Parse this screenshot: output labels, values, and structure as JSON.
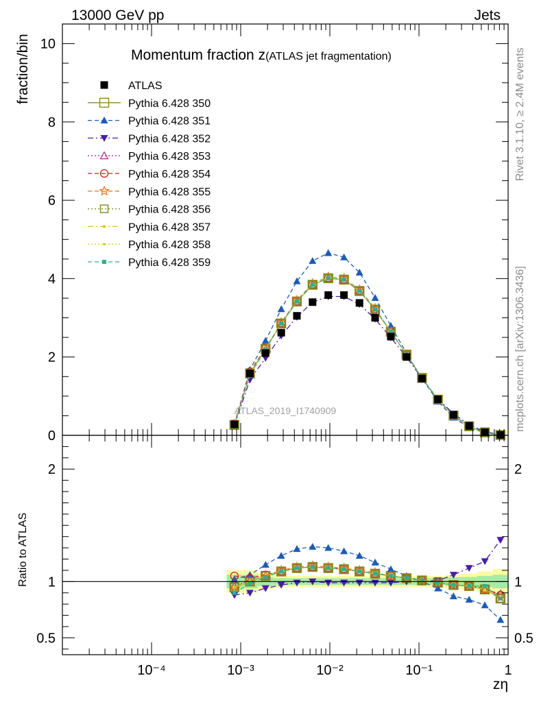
{
  "header": {
    "left": "13000 GeV pp",
    "right": "Jets"
  },
  "side": {
    "rivet": "Rivet 3.1.10, ≥ 2.4M events",
    "mcplots": "mcplots.cern.ch [arXiv:1306.3436]"
  },
  "watermark": "ATLAS_2019_I1740909",
  "chart_data": {
    "type": "scatter",
    "title_main": "Momentum fraction z",
    "title_sub": "(ATLAS jet fragmentation)",
    "ylabel_top": "fraction/bin",
    "ylabel_bottom": "Ratio to ATLAS",
    "xlabel": "zη",
    "xscale": "log",
    "xlim": [
      1e-05,
      1
    ],
    "ylim_top": [
      0,
      10.5
    ],
    "ylim_bottom": [
      0.35,
      2.3
    ],
    "x_tick_labels": [
      "10⁻⁴",
      "10⁻³",
      "10⁻²",
      "10⁻¹",
      "1"
    ],
    "y_tick_labels_top": [
      "0",
      "2",
      "4",
      "6",
      "8",
      "10"
    ],
    "y_tick_labels_bottom": [
      "0.5",
      "1",
      "2"
    ],
    "x": [
      0.00085,
      0.00127,
      0.0019,
      0.00285,
      0.00427,
      0.0064,
      0.0096,
      0.0144,
      0.0215,
      0.0322,
      0.0483,
      0.0724,
      0.108,
      0.163,
      0.244,
      0.365,
      0.548,
      0.82
    ],
    "atlas": {
      "name": "ATLAS",
      "values": [
        0.28,
        1.58,
        2.1,
        2.62,
        3.05,
        3.4,
        3.58,
        3.58,
        3.38,
        3.0,
        2.52,
        2.0,
        1.45,
        0.92,
        0.52,
        0.24,
        0.08,
        0.01
      ],
      "band_inner": [
        0.06,
        0.06,
        0.04,
        0.03,
        0.03,
        0.03,
        0.03,
        0.03,
        0.03,
        0.03,
        0.03,
        0.03,
        0.03,
        0.03,
        0.04,
        0.04,
        0.05,
        0.06
      ],
      "band_outer": [
        0.1,
        0.1,
        0.07,
        0.05,
        0.05,
        0.05,
        0.05,
        0.05,
        0.05,
        0.05,
        0.05,
        0.05,
        0.05,
        0.05,
        0.06,
        0.07,
        0.09,
        0.11
      ]
    },
    "series": [
      {
        "name": "Pythia 6.428 350",
        "color": "#8c8c1e",
        "dash": "",
        "marker": "square-open",
        "marker_size": 13,
        "ratios": [
          0.95,
          1.0,
          1.05,
          1.09,
          1.12,
          1.13,
          1.12,
          1.11,
          1.09,
          1.07,
          1.05,
          1.03,
          1.01,
          0.99,
          0.97,
          0.96,
          0.93,
          0.85
        ]
      },
      {
        "name": "Pythia 6.428 351",
        "color": "#1a5cbd",
        "dash": "6,4",
        "marker": "triangle-up",
        "marker_size": 11,
        "ratios": [
          1.02,
          1.06,
          1.15,
          1.23,
          1.29,
          1.31,
          1.3,
          1.27,
          1.23,
          1.17,
          1.11,
          1.05,
          1.0,
          0.94,
          0.87,
          0.84,
          0.79,
          0.66
        ]
      },
      {
        "name": "Pythia 6.428 352",
        "color": "#4b1bb0",
        "dash": "8,4,2,4",
        "marker": "triangle-down",
        "marker_size": 11,
        "ratios": [
          0.88,
          0.9,
          0.94,
          0.97,
          0.99,
          1.0,
          0.99,
          0.99,
          0.99,
          0.99,
          0.99,
          1.0,
          1.0,
          1.01,
          1.06,
          1.12,
          1.18,
          1.37
        ]
      },
      {
        "name": "Pythia 6.428 353",
        "color": "#b0278e",
        "dash": "2,3",
        "marker": "triangle-open",
        "marker_size": 11,
        "ratios": [
          0.96,
          1.01,
          1.05,
          1.09,
          1.12,
          1.13,
          1.12,
          1.11,
          1.09,
          1.07,
          1.05,
          1.03,
          1.01,
          0.99,
          0.97,
          0.96,
          0.93,
          0.89
        ]
      },
      {
        "name": "Pythia 6.428 354",
        "color": "#e0191a",
        "dash": "6,4",
        "marker": "circle-open",
        "marker_size": 11,
        "ratios": [
          1.05,
          1.03,
          1.06,
          1.09,
          1.12,
          1.13,
          1.12,
          1.11,
          1.09,
          1.07,
          1.05,
          1.03,
          1.01,
          0.99,
          0.97,
          0.96,
          0.94,
          0.88
        ]
      },
      {
        "name": "Pythia 6.428 355",
        "color": "#f07820",
        "dash": "6,4",
        "marker": "star-open",
        "marker_size": 13,
        "ratios": [
          0.95,
          1.0,
          1.05,
          1.1,
          1.13,
          1.14,
          1.13,
          1.12,
          1.1,
          1.08,
          1.05,
          1.03,
          1.01,
          0.99,
          0.97,
          0.96,
          0.93,
          0.86
        ]
      },
      {
        "name": "Pythia 6.428 356",
        "color": "#7a8a18",
        "dash": "2,3",
        "marker": "square-open",
        "marker_size": 11,
        "ratios": [
          0.95,
          1.0,
          1.05,
          1.09,
          1.12,
          1.13,
          1.12,
          1.11,
          1.09,
          1.07,
          1.05,
          1.03,
          1.01,
          0.99,
          0.97,
          0.96,
          0.93,
          0.85
        ]
      },
      {
        "name": "Pythia 6.428 357",
        "color": "#d8c020",
        "dash": "8,4,2,4",
        "marker": "dot-small",
        "marker_size": 5,
        "ratios": [
          0.95,
          1.0,
          1.05,
          1.09,
          1.12,
          1.13,
          1.12,
          1.11,
          1.09,
          1.07,
          1.05,
          1.03,
          1.01,
          0.99,
          0.97,
          0.96,
          0.93,
          0.85
        ]
      },
      {
        "name": "Pythia 6.428 358",
        "color": "#c8d81e",
        "dash": "2,3",
        "marker": "dot-small",
        "marker_size": 4,
        "ratios": [
          0.95,
          1.0,
          1.05,
          1.09,
          1.12,
          1.13,
          1.12,
          1.11,
          1.09,
          1.07,
          1.05,
          1.03,
          1.01,
          0.99,
          0.97,
          0.96,
          0.93,
          0.85
        ]
      },
      {
        "name": "Pythia 6.428 359",
        "color": "#20b88a",
        "dash": "6,4",
        "marker": "square-filled",
        "marker_size": 6,
        "ratios": [
          0.9,
          0.98,
          1.04,
          1.09,
          1.12,
          1.13,
          1.12,
          1.11,
          1.09,
          1.07,
          1.05,
          1.03,
          1.01,
          0.99,
          0.97,
          0.96,
          0.96,
          0.85
        ]
      }
    ]
  }
}
